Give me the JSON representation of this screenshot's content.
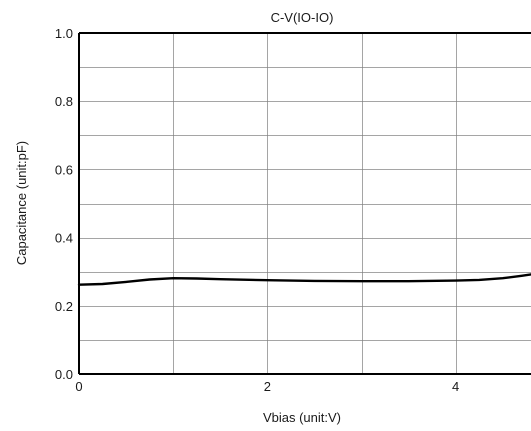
{
  "chart_data": {
    "type": "line",
    "title": "C-V(IO-IO)",
    "xlabel": "Vbias (unit:V)",
    "ylabel": "Capacitance (unit:pF)",
    "xlim": [
      0,
      4.8
    ],
    "ylim": [
      0.0,
      1.0
    ],
    "x_ticks": [
      0,
      2,
      4
    ],
    "x_tick_labels": [
      "0",
      "2",
      "4"
    ],
    "y_ticks": [
      0.0,
      0.2,
      0.4,
      0.6,
      0.8,
      1.0
    ],
    "y_tick_labels": [
      "0.0",
      "0.2",
      "0.4",
      "0.6",
      "0.8",
      "1.0"
    ],
    "grid": true,
    "line_color": "#000000",
    "grid_color": "#808080",
    "series": [
      {
        "x": [
          0,
          0.25,
          0.5,
          0.75,
          1.0,
          1.25,
          1.5,
          2.0,
          2.5,
          3.0,
          3.5,
          4.0,
          4.25,
          4.5,
          4.7,
          4.8
        ],
        "y": [
          0.262,
          0.264,
          0.27,
          0.277,
          0.281,
          0.28,
          0.278,
          0.275,
          0.273,
          0.272,
          0.272,
          0.274,
          0.276,
          0.281,
          0.288,
          0.292
        ]
      }
    ]
  }
}
